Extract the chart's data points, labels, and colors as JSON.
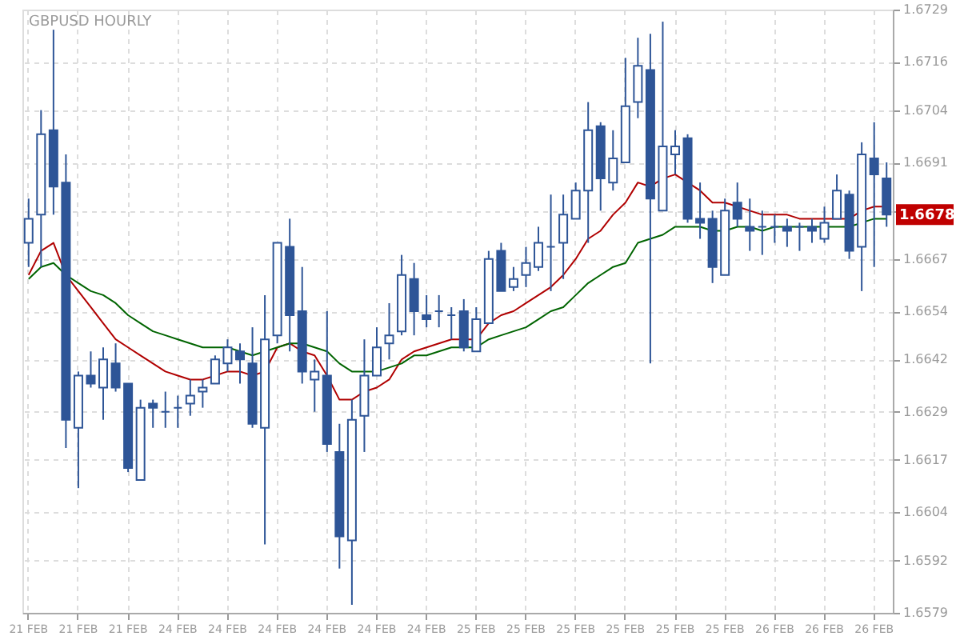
{
  "chart_data": {
    "type": "candlestick",
    "title": "GBPUSD HOURLY",
    "color": "#2e5597",
    "categories": [
      "21 FEB",
      null,
      null,
      null,
      "21 FEB",
      null,
      null,
      null,
      "21 FEB",
      null,
      null,
      null,
      "24 FEB",
      null,
      null,
      null,
      "24 FEB",
      null,
      null,
      null,
      "24 FEB",
      null,
      null,
      null,
      "24 FEB",
      null,
      null,
      null,
      "24 FEB",
      null,
      null,
      null,
      "24 FEB",
      null,
      null,
      null,
      "25 FEB",
      null,
      null,
      null,
      "25 FEB",
      null,
      null,
      null,
      "25 FEB",
      null,
      null,
      null,
      "25 FEB",
      null,
      null,
      null,
      "25 FEB",
      null,
      null,
      null,
      "25 FEB",
      null,
      null,
      null,
      "26 FEB",
      null,
      null,
      null,
      "26 FEB",
      null,
      null,
      null,
      "26 FEB",
      null
    ],
    "ohlc": [
      [
        1.6671,
        1.6682,
        1.6665,
        1.6677
      ],
      [
        1.6678,
        1.6704,
        1.6665,
        1.6698
      ],
      [
        1.6699,
        1.6724,
        1.6678,
        1.6685
      ],
      [
        1.6686,
        1.6693,
        1.662,
        1.6627
      ],
      [
        1.6625,
        1.6639,
        1.661,
        1.6638
      ],
      [
        1.6638,
        1.6644,
        1.6635,
        1.6636
      ],
      [
        1.6635,
        1.6645,
        1.6627,
        1.6642
      ],
      [
        1.6641,
        1.6646,
        1.6634,
        1.6635
      ],
      [
        1.6636,
        1.6636,
        1.6614,
        1.6615
      ],
      [
        1.6612,
        1.6632,
        1.6612,
        1.663
      ],
      [
        1.6631,
        1.6632,
        1.6625,
        1.663
      ],
      [
        1.6629,
        1.6634,
        1.6625,
        1.6629
      ],
      [
        1.663,
        1.6633,
        1.6625,
        1.663
      ],
      [
        1.6631,
        1.6637,
        1.6628,
        1.6633
      ],
      [
        1.6634,
        1.6637,
        1.663,
        1.6635
      ],
      [
        1.6636,
        1.6643,
        1.6636,
        1.6642
      ],
      [
        1.6641,
        1.6647,
        1.6639,
        1.6645
      ],
      [
        1.6644,
        1.6646,
        1.6636,
        1.6642
      ],
      [
        1.6641,
        1.665,
        1.6625,
        1.6626
      ],
      [
        1.6625,
        1.6658,
        1.6596,
        1.6647
      ],
      [
        1.6648,
        1.6671,
        1.6646,
        1.6671
      ],
      [
        1.667,
        1.6677,
        1.6644,
        1.6653
      ],
      [
        1.6654,
        1.6665,
        1.6636,
        1.6639
      ],
      [
        1.6637,
        1.6642,
        1.6629,
        1.6639
      ],
      [
        1.6638,
        1.6654,
        1.6619,
        1.6621
      ],
      [
        1.6619,
        1.6626,
        1.659,
        1.6598
      ],
      [
        1.6597,
        1.6632,
        1.6581,
        1.6627
      ],
      [
        1.6628,
        1.6647,
        1.6619,
        1.6638
      ],
      [
        1.6638,
        1.665,
        1.6638,
        1.6645
      ],
      [
        1.6646,
        1.6656,
        1.6642,
        1.6648
      ],
      [
        1.6649,
        1.6668,
        1.6648,
        1.6663
      ],
      [
        1.6662,
        1.6666,
        1.6648,
        1.6654
      ],
      [
        1.6653,
        1.6658,
        1.665,
        1.6652
      ],
      [
        1.6654,
        1.6658,
        1.665,
        1.6654
      ],
      [
        1.6653,
        1.6655,
        1.6647,
        1.6653
      ],
      [
        1.6654,
        1.6657,
        1.6644,
        1.6645
      ],
      [
        1.6644,
        1.6655,
        1.6644,
        1.6652
      ],
      [
        1.6651,
        1.6669,
        1.6651,
        1.6667
      ],
      [
        1.6669,
        1.6671,
        1.6659,
        1.6659
      ],
      [
        1.666,
        1.6665,
        1.6659,
        1.6662
      ],
      [
        1.6663,
        1.667,
        1.666,
        1.6666
      ],
      [
        1.6665,
        1.6675,
        1.6664,
        1.6671
      ],
      [
        1.667,
        1.6683,
        1.6659,
        1.667
      ],
      [
        1.6671,
        1.6683,
        1.6662,
        1.6678
      ],
      [
        1.6677,
        1.6686,
        1.6677,
        1.6684
      ],
      [
        1.6684,
        1.6706,
        1.6671,
        1.6699
      ],
      [
        1.67,
        1.6701,
        1.6679,
        1.6687
      ],
      [
        1.6686,
        1.6699,
        1.6684,
        1.6692
      ],
      [
        1.6691,
        1.6717,
        1.6691,
        1.6705
      ],
      [
        1.6706,
        1.6722,
        1.6702,
        1.6715
      ],
      [
        1.6714,
        1.6723,
        1.6641,
        1.6682
      ],
      [
        1.6679,
        1.6726,
        1.6679,
        1.6695
      ],
      [
        1.6693,
        1.6699,
        1.6688,
        1.6695
      ],
      [
        1.6697,
        1.6698,
        1.6676,
        1.6677
      ],
      [
        1.6677,
        1.6686,
        1.6672,
        1.6676
      ],
      [
        1.6677,
        1.6679,
        1.6661,
        1.6665
      ],
      [
        1.6663,
        1.6682,
        1.6663,
        1.6679
      ],
      [
        1.6681,
        1.6686,
        1.6675,
        1.6677
      ],
      [
        1.6675,
        1.6682,
        1.6669,
        1.6674
      ],
      [
        1.6675,
        1.6679,
        1.6668,
        1.6675
      ],
      [
        1.6675,
        1.6678,
        1.6671,
        1.6675
      ],
      [
        1.6675,
        1.6677,
        1.667,
        1.6674
      ],
      [
        1.6675,
        1.6676,
        1.6669,
        1.6675
      ],
      [
        1.6675,
        1.6677,
        1.6671,
        1.6674
      ],
      [
        1.6672,
        1.668,
        1.6671,
        1.6676
      ],
      [
        1.6677,
        1.6688,
        1.6677,
        1.6684
      ],
      [
        1.6683,
        1.6684,
        1.6667,
        1.6669
      ],
      [
        1.667,
        1.6696,
        1.6659,
        1.6693
      ],
      [
        1.6692,
        1.6701,
        1.6665,
        1.6688
      ],
      [
        1.6687,
        1.6691,
        1.6675,
        1.6678
      ]
    ],
    "series": [
      {
        "type": "line",
        "color": "#b00000",
        "values": [
          1.6663,
          1.6669,
          1.6671,
          1.6663,
          1.6659,
          1.6655,
          1.6651,
          1.6647,
          1.6645,
          1.6643,
          1.6641,
          1.6639,
          1.6638,
          1.6637,
          1.6637,
          1.6638,
          1.6639,
          1.6639,
          1.6638,
          1.6639,
          1.6645,
          1.6646,
          1.6644,
          1.6643,
          1.6638,
          1.6632,
          1.6632,
          1.6634,
          1.6635,
          1.6637,
          1.6642,
          1.6644,
          1.6645,
          1.6646,
          1.6647,
          1.6647,
          1.6647,
          1.6651,
          1.6653,
          1.6654,
          1.6656,
          1.6658,
          1.666,
          1.6663,
          1.6667,
          1.6672,
          1.6674,
          1.6678,
          1.6681,
          1.6686,
          1.6685,
          1.6687,
          1.6688,
          1.6686,
          1.6684,
          1.6681,
          1.6681,
          1.668,
          1.6679,
          1.6678,
          1.6678,
          1.6678,
          1.6677,
          1.6677,
          1.6677,
          1.6677,
          1.6677,
          1.6679,
          1.668,
          1.668
        ]
      },
      {
        "type": "line",
        "color": "#006400",
        "values": [
          1.6662,
          1.6665,
          1.6666,
          1.6663,
          1.6661,
          1.6659,
          1.6658,
          1.6656,
          1.6653,
          1.6651,
          1.6649,
          1.6648,
          1.6647,
          1.6646,
          1.6645,
          1.6645,
          1.6645,
          1.6644,
          1.6643,
          1.6644,
          1.6645,
          1.6646,
          1.6646,
          1.6645,
          1.6644,
          1.6641,
          1.6639,
          1.6639,
          1.6639,
          1.664,
          1.6641,
          1.6643,
          1.6643,
          1.6644,
          1.6645,
          1.6645,
          1.6645,
          1.6647,
          1.6648,
          1.6649,
          1.665,
          1.6652,
          1.6654,
          1.6655,
          1.6658,
          1.6661,
          1.6663,
          1.6665,
          1.6666,
          1.6671,
          1.6672,
          1.6673,
          1.6675,
          1.6675,
          1.6675,
          1.6674,
          1.6674,
          1.6675,
          1.6675,
          1.6674,
          1.6675,
          1.6675,
          1.6675,
          1.6675,
          1.6675,
          1.6675,
          1.6675,
          1.6676,
          1.6677,
          1.6677
        ]
      }
    ],
    "ylim": [
      1.6579,
      1.6729
    ],
    "yticks": [
      1.6729,
      1.6716,
      1.6704,
      1.6691,
      {
        "value": 1.6679,
        "label": null
      },
      1.6667,
      1.6654,
      1.6642,
      1.6629,
      1.6617,
      1.6604,
      1.6592,
      1.6579
    ],
    "grid": true,
    "ref_lines": [
      {
        "axis": "y",
        "value": 1.6678,
        "label": "1.6678",
        "color": "#c00000"
      }
    ]
  }
}
